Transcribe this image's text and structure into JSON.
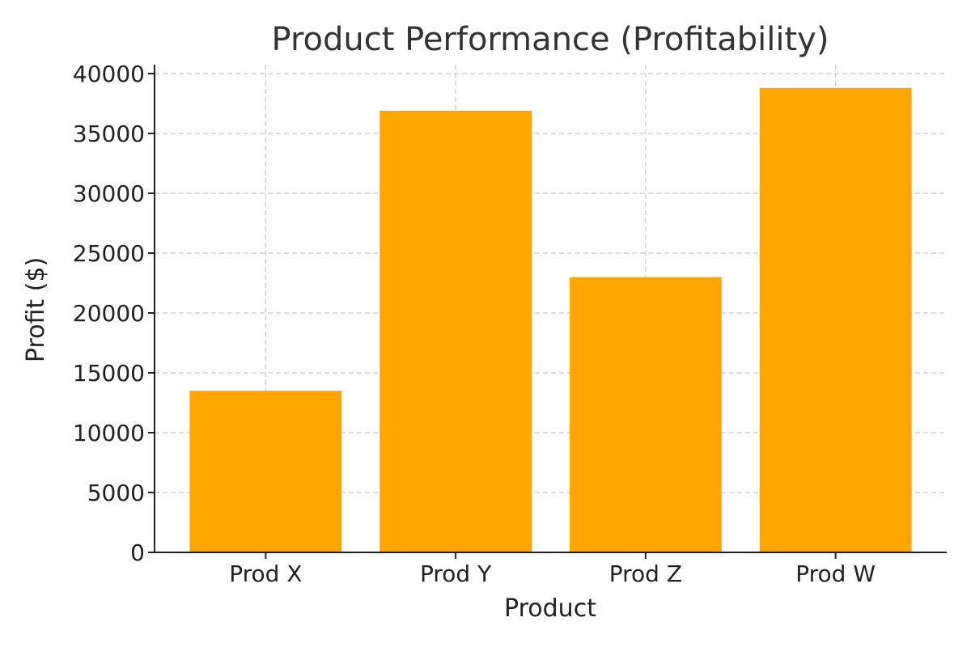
{
  "chart_data": {
    "type": "bar",
    "title": "Product Performance (Profitability)",
    "xlabel": "Product",
    "ylabel": "Profit ($)",
    "categories": [
      "Prod X",
      "Prod Y",
      "Prod Z",
      "Prod W"
    ],
    "values": [
      13500,
      36900,
      23000,
      38800
    ],
    "ylim": [
      0,
      40000
    ],
    "yticks": [
      0,
      5000,
      10000,
      15000,
      20000,
      25000,
      30000,
      35000,
      40000
    ],
    "grid": true,
    "bar_color": "#FFA500"
  }
}
